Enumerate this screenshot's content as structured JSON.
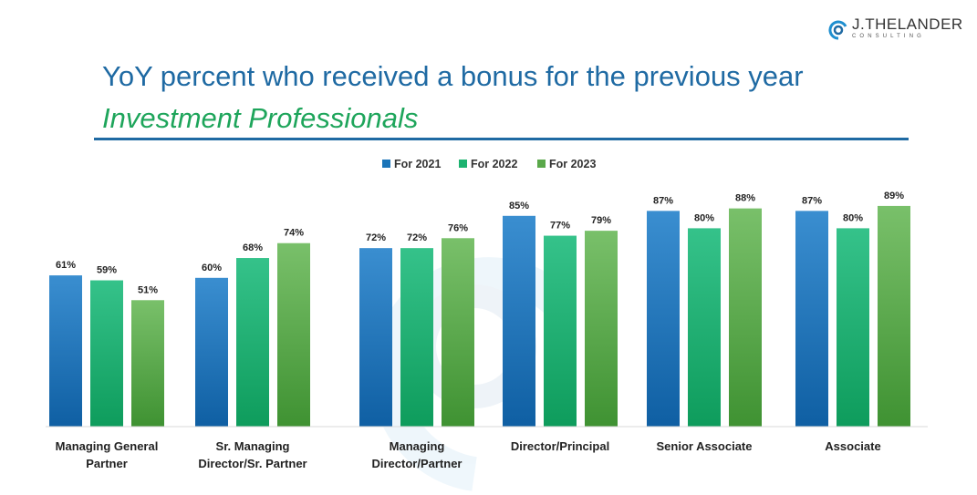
{
  "logo": {
    "name": "J.THELANDER",
    "sub": "CONSULTING"
  },
  "header": {
    "title": "YoY percent who received a bonus for the previous year",
    "subtitle": "Investment Professionals"
  },
  "colors": {
    "title": "#1f6aa3",
    "subtitle": "#1ea55b",
    "series": [
      "#1a74b8",
      "#1db370",
      "#5aa84a"
    ]
  },
  "chart_data": {
    "type": "bar",
    "title": "YoY percent who received a bonus for the previous year",
    "ylim": [
      0,
      100
    ],
    "legend_position": "top-center",
    "grid": false,
    "categories": [
      [
        "Managing General",
        "Partner"
      ],
      [
        "Sr. Managing",
        "Director/Sr. Partner"
      ],
      [
        "Managing",
        "Director/Partner"
      ],
      [
        "Director/Principal"
      ],
      [
        "Senior Associate"
      ],
      [
        "Associate"
      ]
    ],
    "series": [
      {
        "name": "For 2021",
        "values": [
          61,
          60,
          72,
          85,
          87,
          87
        ],
        "labels": [
          "61%",
          "60%",
          "72%",
          "85%",
          "87%",
          "87%"
        ]
      },
      {
        "name": "For 2022",
        "values": [
          59,
          68,
          72,
          77,
          80,
          80
        ],
        "labels": [
          "59%",
          "68%",
          "72%",
          "77%",
          "80%",
          "80%"
        ]
      },
      {
        "name": "For 2023",
        "values": [
          51,
          74,
          76,
          79,
          88,
          89
        ],
        "labels": [
          "51%",
          "74%",
          "76%",
          "79%",
          "88%",
          "89%"
        ]
      }
    ]
  }
}
